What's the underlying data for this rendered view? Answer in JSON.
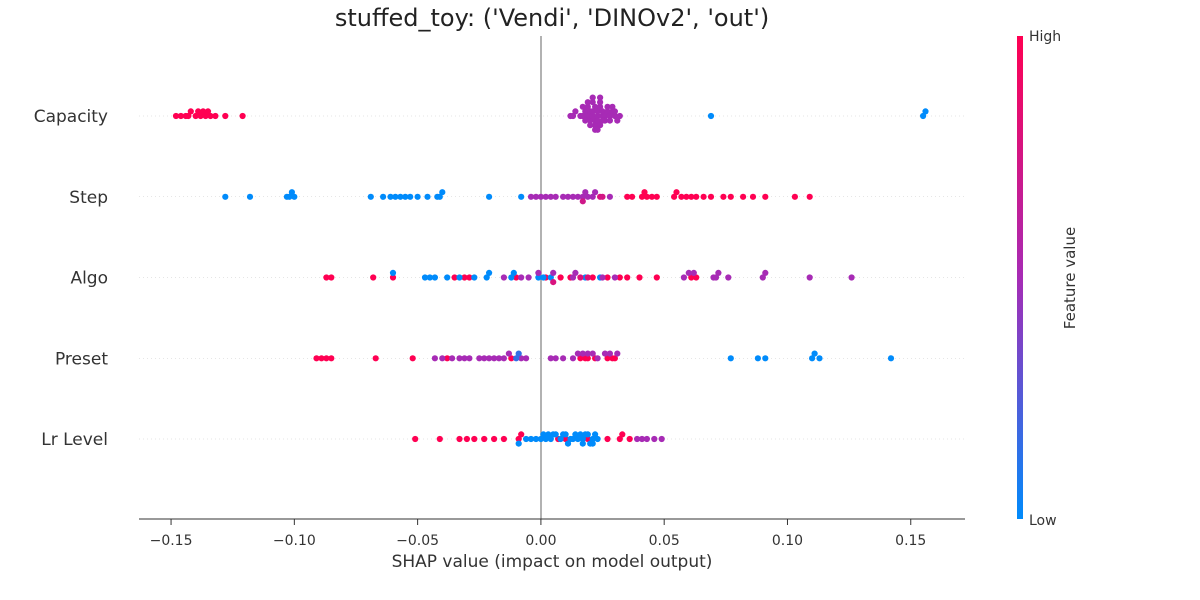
{
  "chart_data": {
    "type": "scatter",
    "title": "stuffed_toy: ('Vendi', 'DINOv2', 'out')",
    "xlabel": "SHAP value (impact on model output)",
    "xlim": [
      -0.163,
      0.172
    ],
    "xticks": [
      -0.15,
      -0.1,
      -0.05,
      0.0,
      0.05,
      0.1,
      0.15
    ],
    "xtick_labels": [
      "−0.15",
      "−0.10",
      "−0.05",
      "0.00",
      "0.05",
      "0.10",
      "0.15"
    ],
    "grid": false,
    "zero_line": true,
    "features": [
      "Capacity",
      "Step",
      "Algo",
      "Preset",
      "Lr Level"
    ],
    "colorbar": {
      "label": "Feature value",
      "high_label": "High",
      "low_label": "Low",
      "low_color": "#008bfb",
      "mid_color": "#a72bb5",
      "high_color": "#ff0052"
    },
    "series": [
      {
        "feature": "Capacity",
        "points": [
          [
            -0.148,
            1
          ],
          [
            -0.146,
            1
          ],
          [
            -0.144,
            1
          ],
          [
            -0.143,
            1
          ],
          [
            -0.142,
            1
          ],
          [
            -0.14,
            1
          ],
          [
            -0.139,
            1
          ],
          [
            -0.138,
            1
          ],
          [
            -0.137,
            1
          ],
          [
            -0.136,
            1
          ],
          [
            -0.135,
            1
          ],
          [
            -0.134,
            1
          ],
          [
            -0.132,
            1
          ],
          [
            -0.128,
            1
          ],
          [
            -0.121,
            1
          ],
          [
            0.012,
            0.5
          ],
          [
            0.013,
            0.5
          ],
          [
            0.014,
            0.5
          ],
          [
            0.016,
            0.5
          ],
          [
            0.017,
            0.5
          ],
          [
            0.018,
            0.5
          ],
          [
            0.019,
            0.5
          ],
          [
            0.02,
            0.5
          ],
          [
            0.02,
            0.5
          ],
          [
            0.021,
            0.5
          ],
          [
            0.021,
            0.5
          ],
          [
            0.022,
            0.5
          ],
          [
            0.022,
            0.5
          ],
          [
            0.022,
            0.5
          ],
          [
            0.023,
            0.5
          ],
          [
            0.023,
            0.5
          ],
          [
            0.023,
            0.5
          ],
          [
            0.024,
            0.5
          ],
          [
            0.024,
            0.5
          ],
          [
            0.025,
            0.5
          ],
          [
            0.025,
            0.5
          ],
          [
            0.026,
            0.5
          ],
          [
            0.027,
            0.5
          ],
          [
            0.028,
            0.5
          ],
          [
            0.029,
            0.5
          ],
          [
            0.03,
            0.5
          ],
          [
            0.03,
            0.5
          ],
          [
            0.031,
            0.5
          ],
          [
            0.032,
            0.5
          ],
          [
            0.019,
            0.5
          ],
          [
            0.018,
            0.5
          ],
          [
            0.021,
            0.5
          ],
          [
            0.024,
            0.5
          ],
          [
            0.026,
            0.5
          ],
          [
            0.02,
            0.5
          ],
          [
            0.022,
            0.5
          ],
          [
            0.023,
            0.5
          ],
          [
            0.025,
            0.5
          ],
          [
            0.027,
            0.5
          ],
          [
            0.021,
            0.5
          ],
          [
            0.024,
            0.5
          ],
          [
            0.028,
            0.5
          ],
          [
            0.019,
            0.5
          ],
          [
            0.017,
            0.5
          ],
          [
            0.029,
            0.5
          ],
          [
            0.069,
            0
          ],
          [
            0.155,
            0
          ],
          [
            0.156,
            0
          ]
        ]
      },
      {
        "feature": "Step",
        "points": [
          [
            -0.128,
            0
          ],
          [
            -0.118,
            0
          ],
          [
            -0.103,
            0
          ],
          [
            -0.102,
            0
          ],
          [
            -0.101,
            0
          ],
          [
            -0.1,
            0
          ],
          [
            -0.069,
            0
          ],
          [
            -0.064,
            0
          ],
          [
            -0.061,
            0
          ],
          [
            -0.059,
            0
          ],
          [
            -0.057,
            0
          ],
          [
            -0.055,
            0
          ],
          [
            -0.053,
            0
          ],
          [
            -0.05,
            0
          ],
          [
            -0.046,
            0
          ],
          [
            -0.042,
            0
          ],
          [
            -0.041,
            0
          ],
          [
            -0.04,
            0
          ],
          [
            -0.021,
            0
          ],
          [
            -0.008,
            0
          ],
          [
            -0.004,
            0.5
          ],
          [
            -0.002,
            0.5
          ],
          [
            0.0,
            0.5
          ],
          [
            0.002,
            0.5
          ],
          [
            0.004,
            0.5
          ],
          [
            0.006,
            0.5
          ],
          [
            0.009,
            0.5
          ],
          [
            0.011,
            0.5
          ],
          [
            0.013,
            0.5
          ],
          [
            0.015,
            0.5
          ],
          [
            0.017,
            0.5
          ],
          [
            0.018,
            0.5
          ],
          [
            0.019,
            0.5
          ],
          [
            0.021,
            0.5
          ],
          [
            0.022,
            0.5
          ],
          [
            0.028,
            0.5
          ],
          [
            0.017,
            0.72
          ],
          [
            0.024,
            0.78
          ],
          [
            0.025,
            0.75
          ],
          [
            0.035,
            1
          ],
          [
            0.037,
            1
          ],
          [
            0.041,
            1
          ],
          [
            0.042,
            1
          ],
          [
            0.043,
            1
          ],
          [
            0.045,
            1
          ],
          [
            0.047,
            1
          ],
          [
            0.054,
            1
          ],
          [
            0.055,
            1
          ],
          [
            0.057,
            1
          ],
          [
            0.059,
            1
          ],
          [
            0.061,
            1
          ],
          [
            0.063,
            1
          ],
          [
            0.066,
            1
          ],
          [
            0.069,
            1
          ],
          [
            0.074,
            1
          ],
          [
            0.077,
            1
          ],
          [
            0.082,
            1
          ],
          [
            0.086,
            1
          ],
          [
            0.091,
            1
          ],
          [
            0.103,
            1
          ],
          [
            0.109,
            1
          ]
        ]
      },
      {
        "feature": "Algo",
        "points": [
          [
            -0.087,
            1
          ],
          [
            -0.085,
            1
          ],
          [
            -0.068,
            1
          ],
          [
            -0.06,
            1
          ],
          [
            -0.035,
            1
          ],
          [
            -0.031,
            1
          ],
          [
            -0.029,
            1
          ],
          [
            -0.01,
            1
          ],
          [
            0.002,
            1
          ],
          [
            0.008,
            1
          ],
          [
            0.012,
            1
          ],
          [
            0.021,
            1
          ],
          [
            0.027,
            1
          ],
          [
            0.032,
            1
          ],
          [
            0.035,
            1
          ],
          [
            0.04,
            1
          ],
          [
            0.047,
            1
          ],
          [
            0.061,
            1
          ],
          [
            0.063,
            1
          ],
          [
            -0.06,
            0
          ],
          [
            -0.047,
            0
          ],
          [
            -0.045,
            0
          ],
          [
            -0.043,
            0
          ],
          [
            -0.038,
            0
          ],
          [
            -0.033,
            0
          ],
          [
            -0.027,
            0
          ],
          [
            -0.022,
            0
          ],
          [
            -0.021,
            0
          ],
          [
            -0.012,
            0
          ],
          [
            -0.011,
            0
          ],
          [
            -0.001,
            0
          ],
          [
            0.001,
            0
          ],
          [
            0.004,
            0
          ],
          [
            0.018,
            0
          ],
          [
            0.024,
            0
          ],
          [
            -0.015,
            0.5
          ],
          [
            -0.008,
            0.5
          ],
          [
            -0.005,
            0.5
          ],
          [
            -0.001,
            0.5
          ],
          [
            0.005,
            0.5
          ],
          [
            0.013,
            0.5
          ],
          [
            0.014,
            0.5
          ],
          [
            0.025,
            0.5
          ],
          [
            0.03,
            0.5
          ],
          [
            0.058,
            0.5
          ],
          [
            0.06,
            0.5
          ],
          [
            0.062,
            0.5
          ],
          [
            0.07,
            0.5
          ],
          [
            0.071,
            0.5
          ],
          [
            0.072,
            0.5
          ],
          [
            0.076,
            0.5
          ],
          [
            0.09,
            0.5
          ],
          [
            0.091,
            0.5
          ],
          [
            0.109,
            0.5
          ],
          [
            0.126,
            0.5
          ],
          [
            0.005,
            0.78
          ],
          [
            0.016,
            0.8
          ],
          [
            0.019,
            0.82
          ]
        ]
      },
      {
        "feature": "Preset",
        "points": [
          [
            -0.091,
            1
          ],
          [
            -0.089,
            1
          ],
          [
            -0.087,
            1
          ],
          [
            -0.085,
            1
          ],
          [
            -0.067,
            1
          ],
          [
            -0.052,
            1
          ],
          [
            -0.038,
            1
          ],
          [
            0.016,
            1
          ],
          [
            0.019,
            1
          ],
          [
            0.022,
            1
          ],
          [
            0.027,
            1
          ],
          [
            0.029,
            1
          ],
          [
            0.03,
            1
          ],
          [
            -0.012,
            1
          ],
          [
            0.018,
            1
          ],
          [
            -0.043,
            0.5
          ],
          [
            -0.04,
            0.5
          ],
          [
            -0.036,
            0.5
          ],
          [
            -0.033,
            0.5
          ],
          [
            -0.031,
            0.5
          ],
          [
            -0.029,
            0.5
          ],
          [
            -0.025,
            0.5
          ],
          [
            -0.023,
            0.5
          ],
          [
            -0.021,
            0.5
          ],
          [
            -0.019,
            0.5
          ],
          [
            -0.017,
            0.5
          ],
          [
            -0.015,
            0.5
          ],
          [
            -0.013,
            0.5
          ],
          [
            -0.008,
            0.5
          ],
          [
            -0.006,
            0.5
          ],
          [
            0.004,
            0.5
          ],
          [
            0.006,
            0.5
          ],
          [
            0.009,
            0.5
          ],
          [
            0.013,
            0.5
          ],
          [
            0.015,
            0.5
          ],
          [
            0.017,
            0.5
          ],
          [
            0.019,
            0.5
          ],
          [
            0.021,
            0.5
          ],
          [
            0.023,
            0.5
          ],
          [
            0.026,
            0.5
          ],
          [
            0.028,
            0.5
          ],
          [
            0.031,
            0.5
          ],
          [
            -0.01,
            0.15
          ],
          [
            -0.009,
            0.15
          ],
          [
            0.077,
            0
          ],
          [
            0.088,
            0
          ],
          [
            0.091,
            0
          ],
          [
            0.11,
            0
          ],
          [
            0.111,
            0
          ],
          [
            0.113,
            0
          ],
          [
            0.142,
            0
          ]
        ]
      },
      {
        "feature": "Lr Level",
        "points": [
          [
            -0.051,
            1
          ],
          [
            -0.041,
            1
          ],
          [
            -0.033,
            1
          ],
          [
            -0.03,
            1
          ],
          [
            -0.027,
            1
          ],
          [
            -0.023,
            1
          ],
          [
            -0.019,
            1
          ],
          [
            -0.015,
            1
          ],
          [
            -0.009,
            1
          ],
          [
            -0.008,
            1
          ],
          [
            0.007,
            1
          ],
          [
            0.01,
            1
          ],
          [
            0.019,
            1
          ],
          [
            0.027,
            1
          ],
          [
            0.032,
            1
          ],
          [
            0.033,
            1
          ],
          [
            0.036,
            1
          ],
          [
            -0.009,
            0
          ],
          [
            -0.006,
            0
          ],
          [
            -0.004,
            0
          ],
          [
            -0.002,
            0
          ],
          [
            0.0,
            0
          ],
          [
            0.002,
            0
          ],
          [
            0.004,
            0
          ],
          [
            0.006,
            0
          ],
          [
            0.008,
            0
          ],
          [
            0.009,
            0
          ],
          [
            0.01,
            0
          ],
          [
            0.012,
            0
          ],
          [
            0.013,
            0
          ],
          [
            0.014,
            0
          ],
          [
            0.015,
            0
          ],
          [
            0.016,
            0
          ],
          [
            0.017,
            0
          ],
          [
            0.018,
            0
          ],
          [
            0.019,
            0
          ],
          [
            0.02,
            0
          ],
          [
            0.021,
            0
          ],
          [
            0.022,
            0
          ],
          [
            0.023,
            0
          ],
          [
            0.001,
            0
          ],
          [
            0.003,
            0
          ],
          [
            0.005,
            0
          ],
          [
            0.011,
            0
          ],
          [
            0.017,
            0
          ],
          [
            0.021,
            0
          ],
          [
            0.039,
            0.5
          ],
          [
            0.041,
            0.5
          ],
          [
            0.043,
            0.5
          ],
          [
            0.046,
            0.5
          ],
          [
            0.049,
            0.5
          ]
        ]
      }
    ]
  }
}
